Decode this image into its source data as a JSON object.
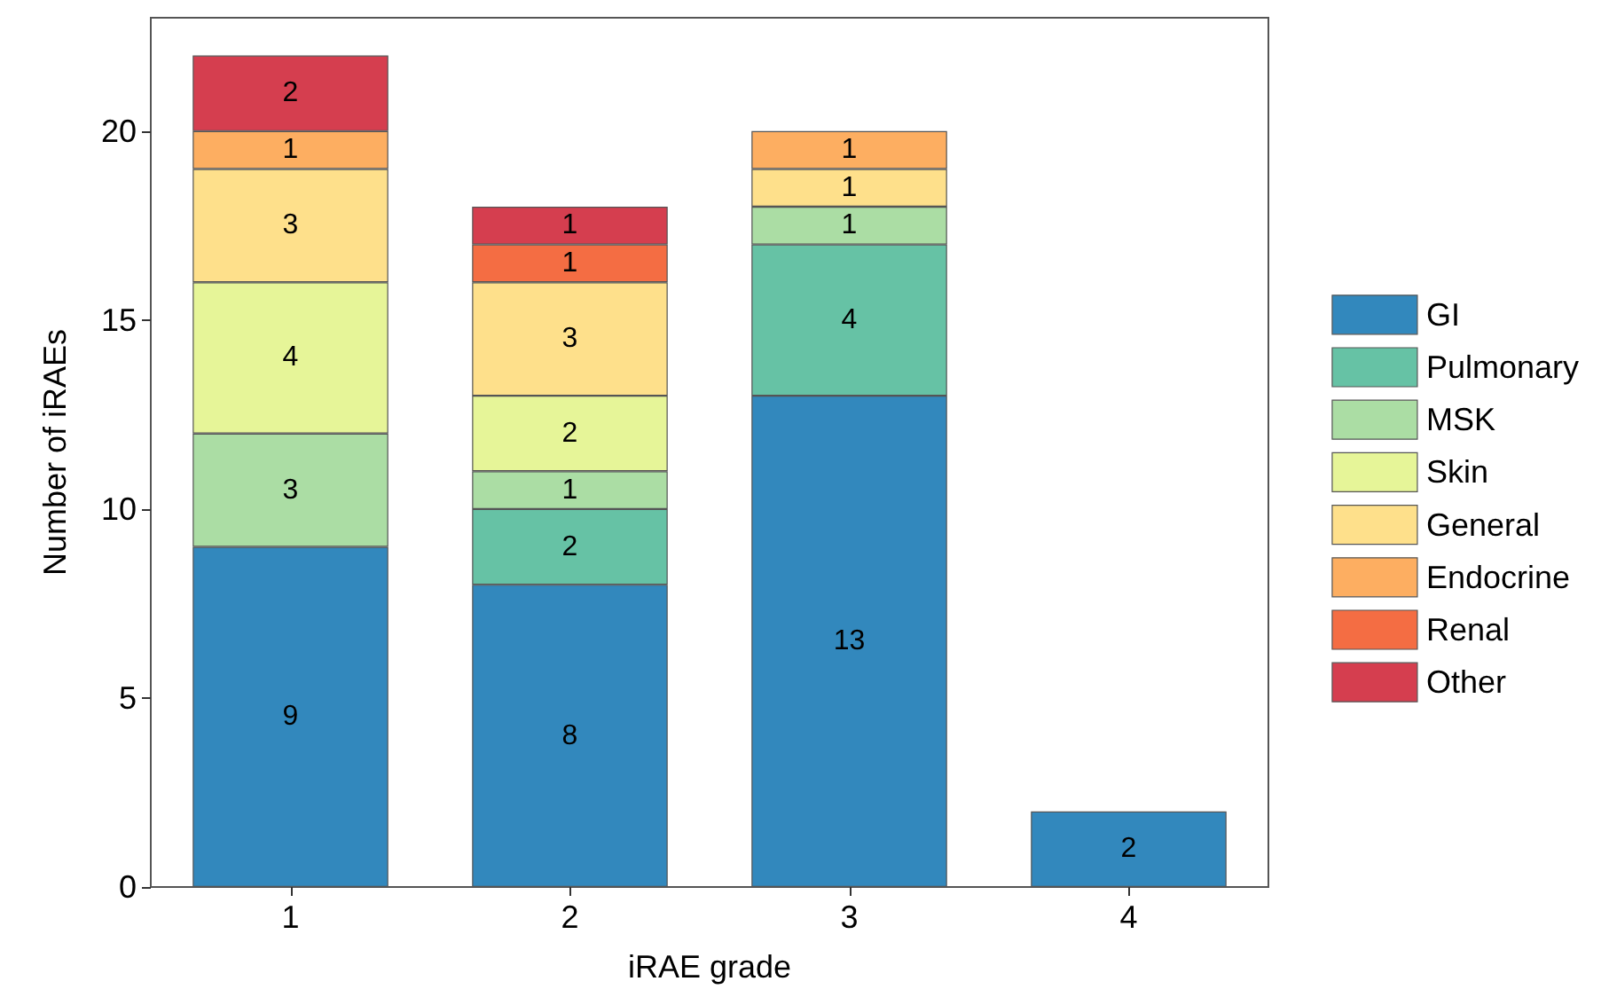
{
  "chart_data": {
    "type": "bar",
    "xlabel": "iRAE grade",
    "ylabel": "Number of iRAEs",
    "categories": [
      "1",
      "2",
      "3",
      "4"
    ],
    "series": [
      {
        "name": "GI",
        "color": "#3288bd",
        "values": [
          9,
          8,
          13,
          2
        ]
      },
      {
        "name": "Pulmonary",
        "color": "#66c2a5",
        "values": [
          null,
          2,
          4,
          null
        ]
      },
      {
        "name": "MSK",
        "color": "#abdda4",
        "values": [
          3,
          1,
          1,
          null
        ]
      },
      {
        "name": "Skin",
        "color": "#e6f598",
        "values": [
          4,
          2,
          null,
          null
        ]
      },
      {
        "name": "General",
        "color": "#fee08b",
        "values": [
          3,
          3,
          1,
          null
        ]
      },
      {
        "name": "Endocrine",
        "color": "#fdae61",
        "values": [
          1,
          null,
          1,
          null
        ]
      },
      {
        "name": "Renal",
        "color": "#f46d43",
        "values": [
          null,
          1,
          null,
          null
        ]
      },
      {
        "name": "Other",
        "color": "#d53e4f",
        "values": [
          2,
          1,
          null,
          null
        ]
      }
    ],
    "stacked": true,
    "data_labels": true,
    "ylim": [
      0,
      23
    ],
    "yticks": [
      0,
      5,
      10,
      15,
      20
    ],
    "grid": false,
    "legend": "right"
  }
}
